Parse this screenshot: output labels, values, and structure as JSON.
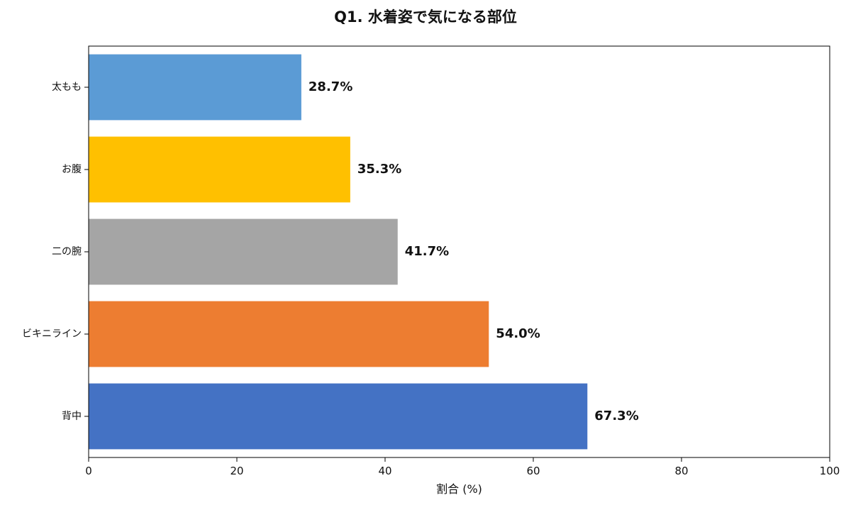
{
  "chart_data": {
    "type": "bar",
    "orientation": "horizontal",
    "title": "Q1. 水着姿で気になる部位",
    "xlabel": "割合 (%)",
    "ylabel": "",
    "xlim": [
      0,
      100
    ],
    "xticks": [
      0,
      20,
      40,
      60,
      80,
      100
    ],
    "grid": false,
    "categories": [
      "太もも",
      "お腹",
      "二の腕",
      "ビキニライン",
      "背中"
    ],
    "values": [
      28.7,
      35.3,
      41.7,
      54.0,
      67.3
    ],
    "data_labels": [
      "28.7%",
      "35.3%",
      "41.7%",
      "54.0%",
      "67.3%"
    ],
    "colors": [
      "#5B9BD5",
      "#FFC000",
      "#A5A5A5",
      "#ED7D31",
      "#4472C4"
    ]
  }
}
